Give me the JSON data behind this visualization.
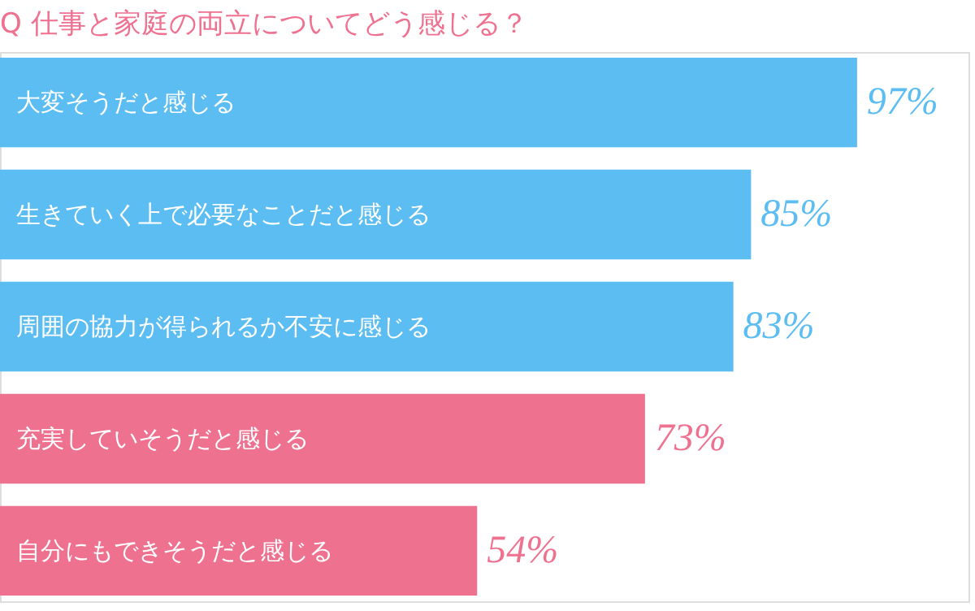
{
  "chart_data": {
    "type": "bar",
    "orientation": "horizontal",
    "title": "Q 仕事と家庭の両立についてどう感じる？",
    "categories": [
      "大変そうだと感じる",
      "生きていく上で必要なことだと感じる",
      "周囲の協力が得られるか不安に感じる",
      "充実していそうだと感じる",
      "自分にもできそうだと感じる"
    ],
    "values": [
      97,
      85,
      83,
      73,
      54
    ],
    "colors": [
      "#5bbdf2",
      "#5bbdf2",
      "#5bbdf2",
      "#ef7190",
      "#ef7190"
    ],
    "value_labels": [
      "97%",
      "85%",
      "83%",
      "73%",
      "54%"
    ],
    "grid": false
  }
}
